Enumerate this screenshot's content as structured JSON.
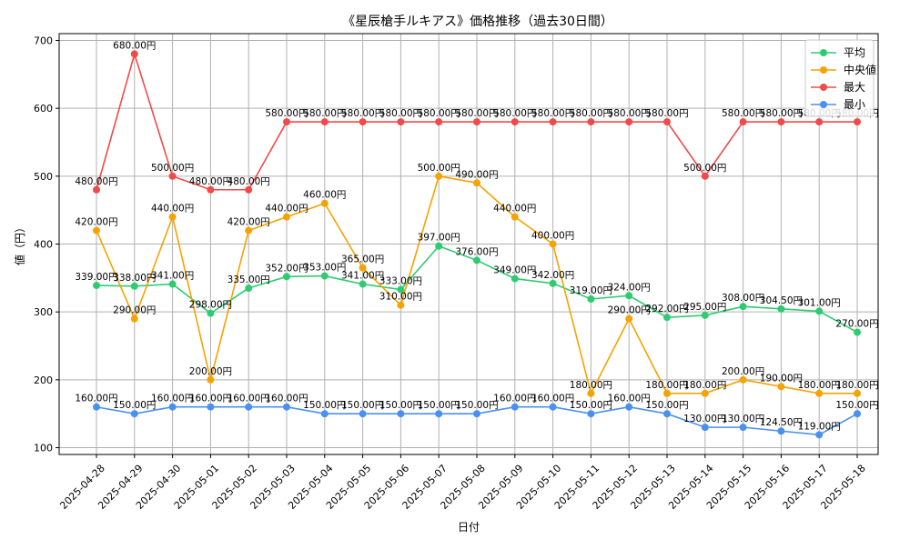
{
  "chart_data": {
    "type": "line",
    "title": "《星辰槍手ルキアス》価格推移（過去30日間）",
    "xlabel": "日付",
    "ylabel": "値（円）",
    "ylim": [
      90,
      710
    ],
    "yticks": [
      100,
      200,
      300,
      400,
      500,
      600,
      700
    ],
    "grid": true,
    "legend_position": "top-right",
    "categories": [
      "2025-04-28",
      "2025-04-29",
      "2025-04-30",
      "2025-05-01",
      "2025-05-02",
      "2025-05-03",
      "2025-05-04",
      "2025-05-05",
      "2025-05-06",
      "2025-05-07",
      "2025-05-08",
      "2025-05-09",
      "2025-05-10",
      "2025-05-11",
      "2025-05-12",
      "2025-05-13",
      "2025-05-14",
      "2025-05-15",
      "2025-05-16",
      "2025-05-17",
      "2025-05-18"
    ],
    "series": [
      {
        "name": "平均",
        "color": "#2ecc71",
        "label_side": "top",
        "values": [
          339,
          338,
          341,
          298,
          335,
          352,
          353,
          341,
          333,
          397,
          376,
          349,
          342,
          319,
          324,
          292,
          295,
          308,
          304.5,
          301,
          270
        ],
        "labels": [
          "339.00円",
          "338.00円",
          "341.00円",
          "298.00円",
          "335.00円",
          "352.00円",
          "353.00円",
          "341.00円",
          "333.00円",
          "397.00円",
          "376.00円",
          "349.00円",
          "342.00円",
          "319.00円",
          "324.00円",
          "292.00円",
          "295.00円",
          "308.00円",
          "304.50円",
          "301.00円",
          "270.00円"
        ]
      },
      {
        "name": "中央値",
        "color": "#f5a300",
        "label_side": "top",
        "values": [
          420,
          290,
          440,
          200,
          420,
          440,
          460,
          365,
          310,
          500,
          490,
          440,
          400,
          180,
          290,
          180,
          180,
          200,
          190,
          180,
          180
        ],
        "labels": [
          "420.00円",
          "290.00円",
          "440.00円",
          "200.00円",
          "420.00円",
          "440.00円",
          "460.00円",
          "365.00円",
          "310.00円",
          "500.00円",
          "490.00円",
          "440.00円",
          "400.00円",
          "180.00円",
          "290.00円",
          "180.00円",
          "180.00円",
          "200.00円",
          "190.00円",
          "180.00円",
          "180.00円"
        ]
      },
      {
        "name": "最大",
        "color": "#f04a4a",
        "label_side": "top",
        "values": [
          480,
          680,
          500,
          480,
          480,
          580,
          580,
          580,
          580,
          580,
          580,
          580,
          580,
          580,
          580,
          580,
          500,
          580,
          580,
          580,
          580
        ],
        "labels": [
          "480.00円",
          "680.00円",
          "500.00円",
          "480.00円",
          "480.00円",
          "580.00円",
          "580.00円",
          "580.00円",
          "580.00円",
          "580.00円",
          "580.00円",
          "580.00円",
          "580.00円",
          "580.00円",
          "580.00円",
          "580.00円",
          "500.00円",
          "580.00円",
          "580.00円",
          "580.00円",
          "580.00円"
        ]
      },
      {
        "name": "最小",
        "color": "#4a90f0",
        "label_side": "top",
        "values": [
          160,
          150,
          160,
          160,
          160,
          160,
          150,
          150,
          150,
          150,
          150,
          160,
          160,
          150,
          160,
          150,
          130,
          130,
          124.5,
          119,
          150
        ],
        "labels": [
          "160.00円",
          "150.00円",
          "160.00円",
          "160.00円",
          "160.00円",
          "160.00円",
          "150.00円",
          "150.00円",
          "150.00円",
          "150.00円",
          "150.00円",
          "160.00円",
          "160.00円",
          "150.00円",
          "160.00円",
          "150.00円",
          "130.00円",
          "130.00円",
          "124.50円",
          "119.00円",
          "150.00円"
        ]
      }
    ]
  }
}
